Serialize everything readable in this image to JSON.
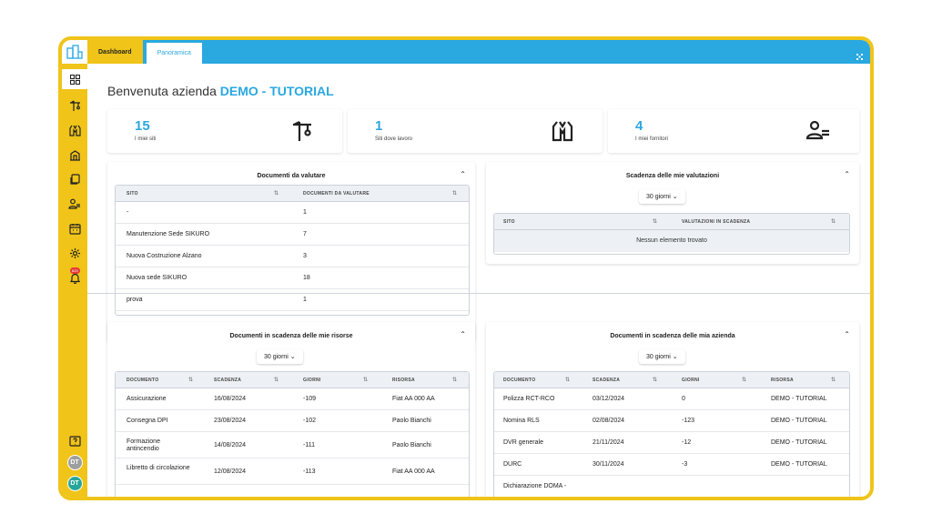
{
  "topbar": {
    "tab_dashboard": "Dashboard",
    "tab_panoramica": "Panoramica"
  },
  "sidebar": {
    "icons": [
      "grid-icon",
      "crane-icon",
      "vest-icon",
      "building-icon",
      "layers-icon",
      "people-icon",
      "calendar-icon",
      "gear-icon",
      "notification-icon"
    ],
    "badge": "620",
    "avatar1": "DT",
    "avatar2": "DT"
  },
  "welcome": {
    "prefix": "Benvenuta azienda ",
    "company": "DEMO - TUTORIAL"
  },
  "stats": [
    {
      "value": "15",
      "label": "I miei siti",
      "icon": "crane-icon"
    },
    {
      "value": "1",
      "label": "Siti dove lavoro",
      "icon": "vest-icon"
    },
    {
      "value": "4",
      "label": "I miei fornitori",
      "icon": "people-icon"
    }
  ],
  "docs_to_evaluate": {
    "title": "Documenti da valutare",
    "columns": [
      "SITO",
      "DOCUMENTI DA VALUTARE"
    ],
    "rows": [
      [
        "-",
        "1"
      ],
      [
        "Manutenzione Sede SIKURO",
        "7"
      ],
      [
        "Nuova Costruzione Alzano",
        "3"
      ],
      [
        "Nuova sede SIKURO",
        "18"
      ],
      [
        "prova",
        "1"
      ]
    ]
  },
  "evaluations_due": {
    "title": "Scadenza delle mie valutazioni",
    "select": "30 giorni",
    "columns": [
      "SITO",
      "VALUTAZIONI IN SCADENZA"
    ],
    "empty": "Nessun elemento trovato"
  },
  "resources_due": {
    "title": "Documenti in scadenza delle mie risorse",
    "select": "30 giorni",
    "columns": [
      "DOCUMENTO",
      "SCADENZA",
      "GIORNI",
      "RISORSA"
    ],
    "rows": [
      [
        "Assicurazione",
        "16/08/2024",
        "-109",
        "Fiat AA 000 AA"
      ],
      [
        "Consegna DPI",
        "23/08/2024",
        "-102",
        "Paolo Bianchi"
      ],
      [
        "Formazione antincendio",
        "14/08/2024",
        "-111",
        "Paolo Bianchi"
      ],
      [
        "Libretto di circolazione",
        "12/08/2024",
        "-113",
        "Fiat AA 000 AA"
      ]
    ]
  },
  "company_due": {
    "title": "Documenti in scadenza delle mia azienda",
    "select": "30 giorni",
    "columns": [
      "DOCUMENTO",
      "SCADENZA",
      "GIORNI",
      "RISORSA"
    ],
    "rows": [
      [
        "Polizza RCT-RCO",
        "03/12/2024",
        "0",
        "DEMO - TUTORIAL"
      ],
      [
        "Nomina RLS",
        "02/08/2024",
        "-123",
        "DEMO - TUTORIAL"
      ],
      [
        "DVR generale",
        "21/11/2024",
        "-12",
        "DEMO - TUTORIAL"
      ],
      [
        "DURC",
        "30/11/2024",
        "-3",
        "DEMO - TUTORIAL"
      ],
      [
        "Dichiarazione DOMA -",
        "",
        "",
        ""
      ]
    ]
  },
  "colors": {
    "accent": "#2aa8e0",
    "brand": "#f0c419"
  }
}
